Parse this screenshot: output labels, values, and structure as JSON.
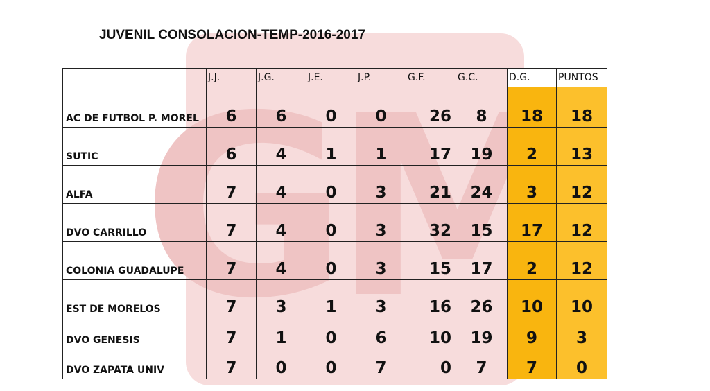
{
  "title": "JUVENIL CONSOLACION-TEMP-2016-2017",
  "watermark_text": "GM",
  "colors": {
    "highlight_dg": "#f9b50f",
    "highlight_puntos": "#fcc02c",
    "watermark": "#f7dcdc"
  },
  "headers": [
    "",
    "J.J.",
    "J.G.",
    "J.E.",
    "J.P.",
    "G.F.",
    "G.C.",
    "D.G.",
    "PUNTOS"
  ],
  "rows": [
    {
      "team": "AC DE FUTBOL P. MOREL",
      "jj": "6",
      "jg": "6",
      "je": "0",
      "jp": "0",
      "gf": "26",
      "gc": "8",
      "dg": "18",
      "puntos": "18"
    },
    {
      "team": "SUTIC",
      "jj": "6",
      "jg": "4",
      "je": "1",
      "jp": "1",
      "gf": "17",
      "gc": "19",
      "dg": "2",
      "puntos": "13"
    },
    {
      "team": "ALFA",
      "jj": "7",
      "jg": "4",
      "je": "0",
      "jp": "3",
      "gf": "21",
      "gc": "24",
      "dg": "3",
      "puntos": "12"
    },
    {
      "team": "DVO CARRILLO",
      "jj": "7",
      "jg": "4",
      "je": "0",
      "jp": "3",
      "gf": "32",
      "gc": "15",
      "dg": "17",
      "puntos": "12"
    },
    {
      "team": "COLONIA GUADALUPE",
      "jj": "7",
      "jg": "4",
      "je": "0",
      "jp": "3",
      "gf": "15",
      "gc": "17",
      "dg": "2",
      "puntos": "12"
    },
    {
      "team": "EST DE MORELOS",
      "jj": "7",
      "jg": "3",
      "je": "1",
      "jp": "3",
      "gf": "16",
      "gc": "26",
      "dg": "10",
      "puntos": "10"
    },
    {
      "team": "DVO GENESIS",
      "jj": "7",
      "jg": "1",
      "je": "0",
      "jp": "6",
      "gf": "10",
      "gc": "19",
      "dg": "9",
      "puntos": "3"
    },
    {
      "team": "DVO ZAPATA UNIV",
      "jj": "7",
      "jg": "0",
      "je": "0",
      "jp": "7",
      "gf": "0",
      "gc": "7",
      "dg": "7",
      "puntos": "0"
    }
  ]
}
